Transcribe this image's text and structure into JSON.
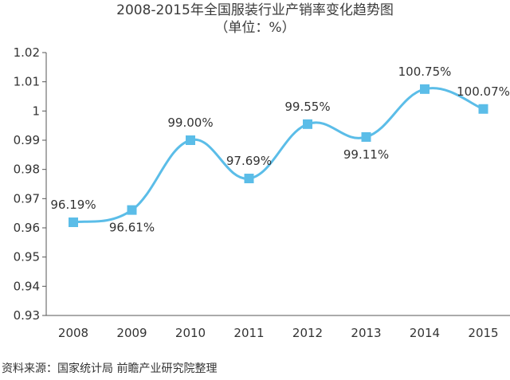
{
  "colors": {
    "series": "#5bbde8",
    "marker": "#5bbde8",
    "axis": "#555555",
    "text": "#333333"
  },
  "chart_data": {
    "type": "line",
    "title": "2008-2015年全国服装行业产销率变化趋势图",
    "subtitle": "（单位：%）",
    "categories": [
      "2008",
      "2009",
      "2010",
      "2011",
      "2012",
      "2013",
      "2014",
      "2015"
    ],
    "series": [
      {
        "values": [
          0.9619,
          0.9661,
          0.99,
          0.9769,
          0.9955,
          0.9911,
          1.0075,
          1.0007
        ],
        "labels": [
          "96.19%",
          "96.61%",
          "99.00%",
          "97.69%",
          "99.55%",
          "99.11%",
          "100.75%",
          "100.07%"
        ],
        "label_positions": [
          "above",
          "below",
          "above",
          "above",
          "above",
          "below",
          "above",
          "above"
        ]
      }
    ],
    "ylim": [
      0.93,
      1.02
    ],
    "yticks": [
      0.93,
      0.94,
      0.95,
      0.96,
      0.97,
      0.98,
      0.99,
      1,
      1.01,
      1.02
    ],
    "ytick_labels": [
      "0.93",
      "0.94",
      "0.95",
      "0.96",
      "0.97",
      "0.98",
      "0.99",
      "1",
      "1.01",
      "1.02"
    ],
    "smooth": true,
    "grid": false,
    "legend": "none"
  },
  "source_note": "资料来源：国家统计局 前瞻产业研究院整理"
}
